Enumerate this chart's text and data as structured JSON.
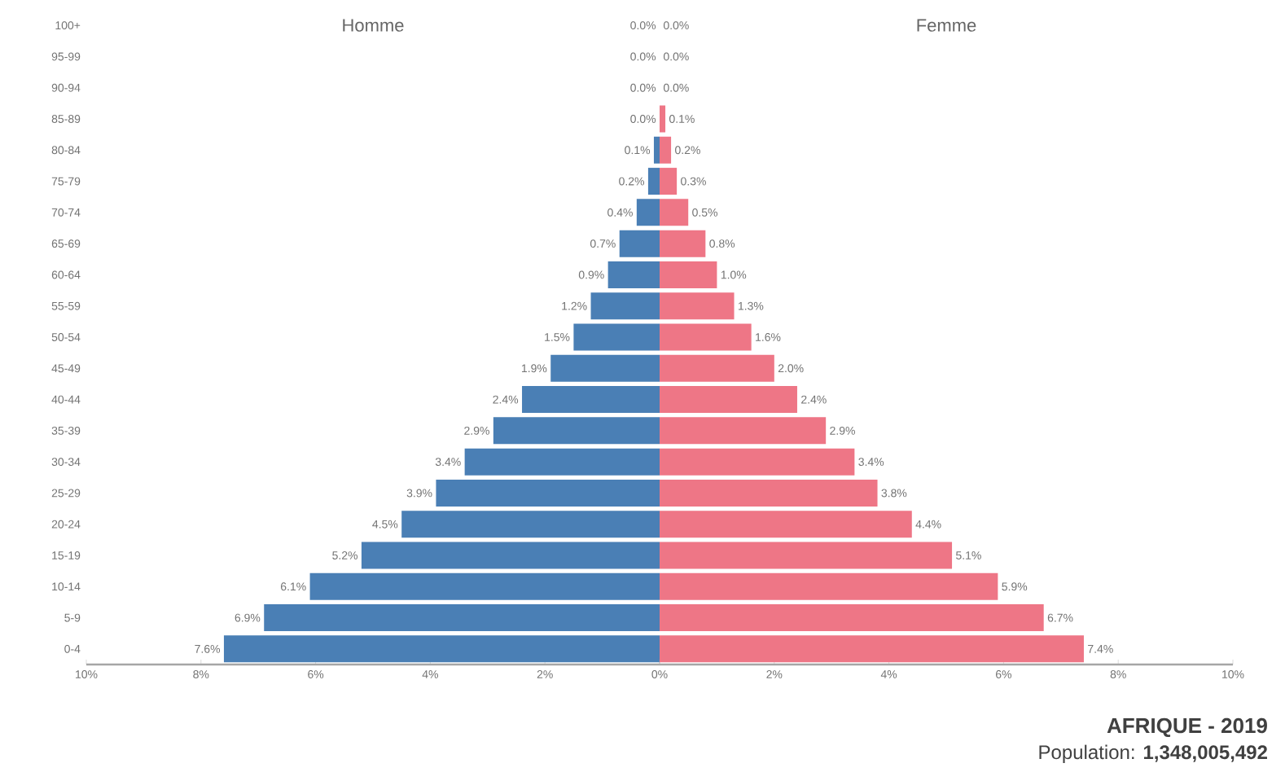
{
  "chart_data": [
    {
      "type": "bar",
      "orientation": "horizontal",
      "title": "Homme",
      "color": "#4a7fb5",
      "categories": [
        "100+",
        "95-99",
        "90-94",
        "85-89",
        "80-84",
        "75-79",
        "70-74",
        "65-69",
        "60-64",
        "55-59",
        "50-54",
        "45-49",
        "40-44",
        "35-39",
        "30-34",
        "25-29",
        "20-24",
        "15-19",
        "10-14",
        "5-9",
        "0-4"
      ],
      "values": [
        0.0,
        0.0,
        0.0,
        0.0,
        0.1,
        0.2,
        0.4,
        0.7,
        0.9,
        1.2,
        1.5,
        1.9,
        2.4,
        2.9,
        3.4,
        3.9,
        4.5,
        5.2,
        6.1,
        6.9,
        7.6
      ],
      "value_labels": [
        "0.0%",
        "0.0%",
        "0.0%",
        "0.0%",
        "0.1%",
        "0.2%",
        "0.4%",
        "0.7%",
        "0.9%",
        "1.2%",
        "1.5%",
        "1.9%",
        "2.4%",
        "2.9%",
        "3.4%",
        "3.9%",
        "4.5%",
        "5.2%",
        "6.1%",
        "6.9%",
        "7.6%"
      ],
      "xlim": [
        10,
        0
      ],
      "xticks": [
        {
          "value": 10,
          "label": "10%"
        },
        {
          "value": 8,
          "label": "8%"
        },
        {
          "value": 6,
          "label": "6%"
        },
        {
          "value": 4,
          "label": "4%"
        },
        {
          "value": 2,
          "label": "2%"
        },
        {
          "value": 0,
          "label": "0%"
        }
      ]
    },
    {
      "type": "bar",
      "orientation": "horizontal",
      "title": "Femme",
      "color": "#ee7686",
      "categories": [
        null,
        null,
        null,
        null,
        null,
        null,
        null,
        null,
        null,
        null,
        null,
        null,
        null,
        null,
        null,
        null,
        null,
        null,
        null,
        null,
        null
      ],
      "values": [
        0.0,
        0.0,
        0.0,
        0.1,
        0.2,
        0.3,
        0.5,
        0.8,
        1.0,
        1.3,
        1.6,
        2.0,
        2.4,
        2.9,
        3.4,
        3.8,
        4.4,
        5.1,
        5.9,
        6.7,
        7.4
      ],
      "value_labels": [
        "0.0%",
        "0.0%",
        "0.0%",
        "0.1%",
        "0.2%",
        "0.3%",
        "0.5%",
        "0.8%",
        "1.0%",
        "1.3%",
        "1.6%",
        "2.0%",
        "2.4%",
        "2.9%",
        "3.4%",
        "3.8%",
        "4.4%",
        "5.1%",
        "5.9%",
        "6.7%",
        "7.4%"
      ],
      "xlim": [
        0,
        10
      ],
      "xticks": [
        {
          "value": 0,
          "label": null
        },
        {
          "value": 2,
          "label": "2%"
        },
        {
          "value": 4,
          "label": "4%"
        },
        {
          "value": 6,
          "label": "6%"
        },
        {
          "value": 8,
          "label": "8%"
        },
        {
          "value": 10,
          "label": "10%"
        }
      ],
      "tick_labels": "x",
      "annotations": [
        "AFRIQUE - 2019",
        "Population: **1,348,005,492**"
      ]
    }
  ]
}
